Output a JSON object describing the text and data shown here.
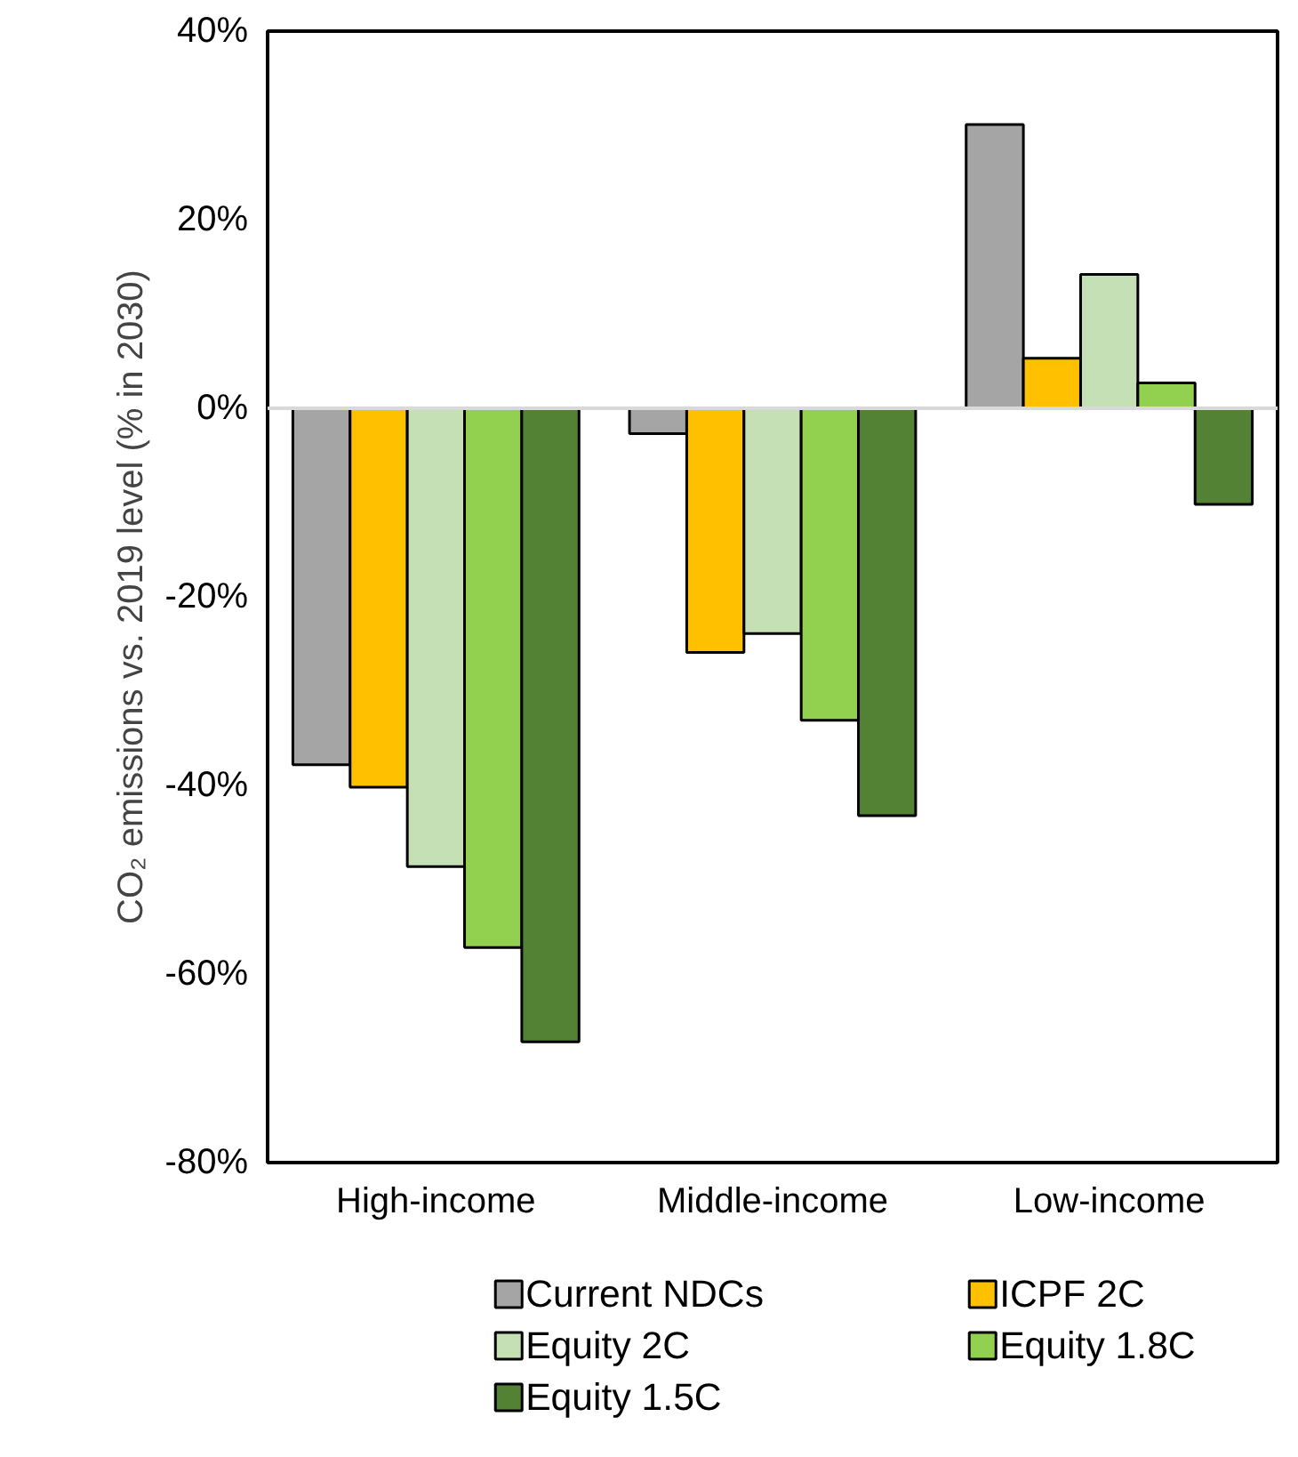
{
  "chart_data": {
    "type": "bar",
    "ylabel": "CO₂ emissions vs. 2019 level (% in 2030)",
    "categories": [
      "High-income",
      "Middle-income",
      "Low-income"
    ],
    "series": [
      {
        "name": "Current NDCs",
        "color": "#a5a5a5",
        "values": [
          -37.8,
          -2.7,
          30.1
        ]
      },
      {
        "name": "ICPF 2C",
        "color": "#ffc000",
        "values": [
          -40.2,
          -25.9,
          5.3
        ]
      },
      {
        "name": "Equity 2C",
        "color": "#c5e0b4",
        "values": [
          -48.6,
          -23.9,
          14.2
        ]
      },
      {
        "name": "Equity 1.8C",
        "color": "#92d050",
        "values": [
          -57.2,
          -33.1,
          2.7
        ]
      },
      {
        "name": "Equity 1.5C",
        "color": "#548235",
        "values": [
          -67.2,
          -43.2,
          -10.2
        ]
      }
    ],
    "ylim": [
      -80,
      40
    ],
    "yticks": [
      {
        "value": -80,
        "label": "-80%"
      },
      {
        "value": -60,
        "label": "-60%"
      },
      {
        "value": -40,
        "label": "-40%"
      },
      {
        "value": -20,
        "label": "-20%"
      },
      {
        "value": 0,
        "label": "0%"
      },
      {
        "value": 20,
        "label": "20%"
      },
      {
        "value": 40,
        "label": "40%"
      }
    ],
    "ref_lines": [
      {
        "axis": "y",
        "value": 0,
        "color": "#d9d9d9"
      }
    ],
    "grid": false,
    "legend": "bottom"
  }
}
